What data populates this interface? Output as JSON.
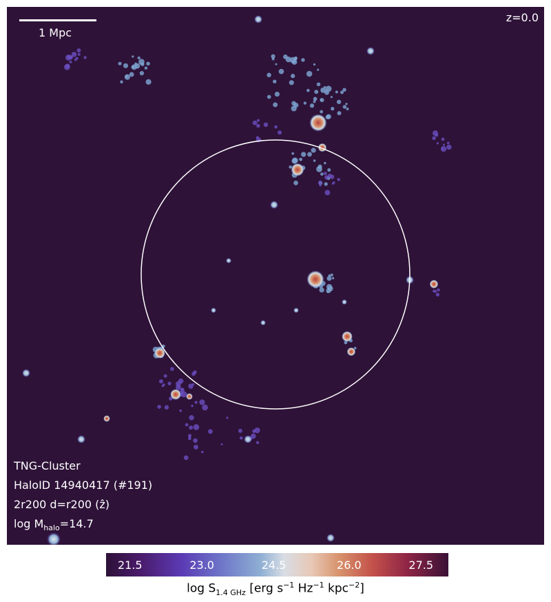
{
  "redshift": "z=0.0",
  "scalebar_label": "1 Mpc",
  "info": {
    "simulation": "TNG-Cluster",
    "halo": "HaloID 14940417 (#191)",
    "projection": "2r200 d=r200 (ẑ)",
    "mass_prefix": "log M",
    "mass_sub": "halo",
    "mass_suffix": "=14.7"
  },
  "colorbar": {
    "ticks": [
      "21.5",
      "23.0",
      "24.5",
      "26.0",
      "27.5"
    ],
    "label_prefix": "log S",
    "label_sub": "1.4 GHz",
    "label_unit_a": " [erg s",
    "exp1": "−1",
    "label_unit_b": " Hz",
    "exp2": "−1",
    "label_unit_c": " kpc",
    "exp3": "−2",
    "label_end": "]"
  },
  "colors": {
    "background": "#2e1238",
    "circle": "#ffffff"
  }
}
